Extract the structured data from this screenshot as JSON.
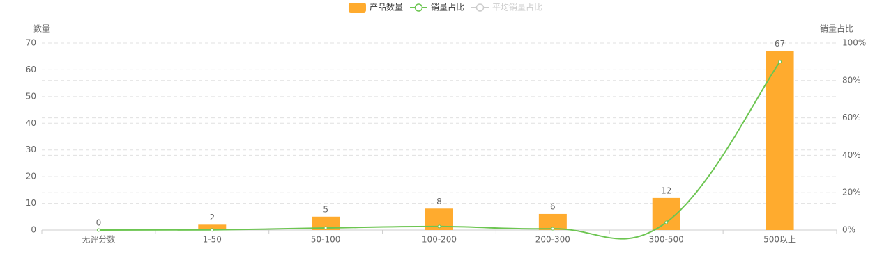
{
  "chart_data": {
    "type": "bar",
    "categories": [
      "无评分数",
      "1-50",
      "50-100",
      "100-200",
      "200-300",
      "300-500",
      "500以上"
    ],
    "series": [
      {
        "name": "产品数量",
        "type": "bar",
        "color": "#ffab2e",
        "values": [
          0,
          2,
          5,
          8,
          6,
          12,
          67
        ]
      },
      {
        "name": "销量占比",
        "type": "line",
        "axis": "y2",
        "smooth": true,
        "color": "#6cc551",
        "values": [
          0,
          0.1,
          1.1,
          1.9,
          0.7,
          4.1,
          90
        ]
      },
      {
        "name": "平均销量占比",
        "type": "line",
        "hidden": true,
        "color": "#cccccc"
      }
    ],
    "ylabel": "数量",
    "y2label": "销量占比",
    "ylim": [
      0,
      70
    ],
    "yticks": [
      0,
      10,
      20,
      30,
      40,
      50,
      60,
      70
    ],
    "y2lim": [
      0,
      100
    ],
    "y2ticks": [
      {
        "value": 0,
        "label": "0%"
      },
      {
        "value": 20,
        "label": "20%"
      },
      {
        "value": 40,
        "label": "40%"
      },
      {
        "value": 60,
        "label": "60%"
      },
      {
        "value": 80,
        "label": "80%"
      },
      {
        "value": 100,
        "label": "100%"
      }
    ],
    "grid": true,
    "legend": "top"
  }
}
